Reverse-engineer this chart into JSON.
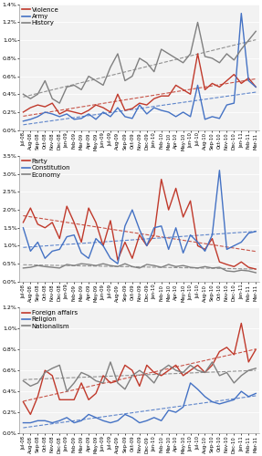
{
  "x_labels": [
    "Jul-08",
    "Aug-08",
    "Sep-08",
    "Oct-08",
    "Nov-08",
    "Dec-08",
    "Jan-09",
    "Feb-09",
    "Mar-09",
    "Apr-09",
    "May-09",
    "Jun-09",
    "Jul-09",
    "Aug-09",
    "Sep-09",
    "Oct-09",
    "Nov-09",
    "Dec-09",
    "Jan-10",
    "Feb-10",
    "Mar-10",
    "Apr-10",
    "May-10",
    "Jun-10",
    "Jul-10",
    "Aug-10",
    "Sep-10",
    "Oct-10",
    "Nov-10",
    "Dec-10",
    "Jan-11",
    "Feb-11",
    "Mar-11"
  ],
  "panel1": {
    "legend": [
      "Violence",
      "Army",
      "History"
    ],
    "colors": [
      "#c0392b",
      "#4472c4",
      "#808080"
    ],
    "ylim": [
      0.0,
      0.014
    ],
    "yticks": [
      0.0,
      0.002,
      0.004,
      0.006,
      0.008,
      0.01,
      0.012,
      0.014
    ],
    "yticklabels": [
      "0.0%",
      "0.2%",
      "0.4%",
      "0.6%",
      "0.8%",
      "1.0%",
      "1.2%",
      "1.4%"
    ],
    "violence": [
      0.002,
      0.0025,
      0.0028,
      0.0026,
      0.003,
      0.0018,
      0.0022,
      0.002,
      0.0018,
      0.0022,
      0.0028,
      0.0025,
      0.002,
      0.004,
      0.0022,
      0.0024,
      0.003,
      0.0028,
      0.0035,
      0.0038,
      0.0038,
      0.005,
      0.0045,
      0.004,
      0.0085,
      0.0045,
      0.0052,
      0.0048,
      0.0055,
      0.0062,
      0.0052,
      0.0058,
      0.0048
    ],
    "army": [
      0.001,
      0.0012,
      0.0015,
      0.002,
      0.0018,
      0.0015,
      0.0018,
      0.0012,
      0.0013,
      0.0018,
      0.0012,
      0.002,
      0.0015,
      0.0025,
      0.0015,
      0.0013,
      0.0028,
      0.0018,
      0.0025,
      0.0022,
      0.002,
      0.0015,
      0.002,
      0.0015,
      0.005,
      0.0012,
      0.0015,
      0.0013,
      0.0028,
      0.003,
      0.013,
      0.0055,
      0.0048
    ],
    "history": [
      0.004,
      0.0035,
      0.004,
      0.0055,
      0.0035,
      0.003,
      0.0048,
      0.005,
      0.0045,
      0.006,
      0.0055,
      0.005,
      0.007,
      0.0085,
      0.0055,
      0.006,
      0.008,
      0.0075,
      0.0065,
      0.009,
      0.0085,
      0.008,
      0.0075,
      0.0085,
      0.012,
      0.0082,
      0.008,
      0.0075,
      0.0085,
      0.0078,
      0.009,
      0.01,
      0.011
    ]
  },
  "panel2": {
    "legend": [
      "Party",
      "Constitution",
      "Economy"
    ],
    "colors": [
      "#c0392b",
      "#4472c4",
      "#808080"
    ],
    "ylim": [
      0.0,
      0.035
    ],
    "yticks": [
      0.0,
      0.005,
      0.01,
      0.015,
      0.02,
      0.025,
      0.03,
      0.035
    ],
    "yticklabels": [
      "0.0%",
      "0.5%",
      "1.0%",
      "1.5%",
      "2.0%",
      "2.5%",
      "3.0%",
      "3.5%"
    ],
    "party": [
      0.0165,
      0.0205,
      0.016,
      0.015,
      0.0165,
      0.012,
      0.021,
      0.0165,
      0.011,
      0.0205,
      0.0165,
      0.01,
      0.017,
      0.006,
      0.011,
      0.0065,
      0.013,
      0.01,
      0.013,
      0.0285,
      0.02,
      0.026,
      0.018,
      0.0225,
      0.01,
      0.009,
      0.012,
      0.0055,
      0.0048,
      0.0042,
      0.0055,
      0.004,
      0.0035
    ],
    "constitution": [
      0.015,
      0.0085,
      0.011,
      0.0065,
      0.0085,
      0.009,
      0.0125,
      0.013,
      0.008,
      0.0065,
      0.012,
      0.01,
      0.0065,
      0.005,
      0.0155,
      0.02,
      0.0145,
      0.01,
      0.015,
      0.0155,
      0.009,
      0.015,
      0.008,
      0.013,
      0.011,
      0.0085,
      0.013,
      0.031,
      0.009,
      0.01,
      0.011,
      0.0135,
      0.014
    ],
    "economy": [
      0.0038,
      0.004,
      0.0045,
      0.0042,
      0.004,
      0.0038,
      0.0048,
      0.0045,
      0.005,
      0.0048,
      0.0045,
      0.005,
      0.0045,
      0.0042,
      0.005,
      0.0042,
      0.0038,
      0.0048,
      0.0045,
      0.004,
      0.0048,
      0.0042,
      0.0045,
      0.004,
      0.0038,
      0.0042,
      0.0038,
      0.004,
      0.003,
      0.0028,
      0.0032,
      0.003,
      0.0025
    ]
  },
  "panel3": {
    "legend": [
      "Foreign affairs",
      "Religion",
      "Nationalism"
    ],
    "colors": [
      "#c0392b",
      "#4472c4",
      "#808080"
    ],
    "ylim": [
      0.0,
      0.012
    ],
    "yticks": [
      0.0,
      0.002,
      0.004,
      0.006,
      0.008,
      0.01,
      0.012
    ],
    "yticklabels": [
      "0.0%",
      "0.2%",
      "0.4%",
      "0.6%",
      "0.8%",
      "1.0%",
      "1.2%"
    ],
    "foreign": [
      0.003,
      0.0018,
      0.0035,
      0.006,
      0.0055,
      0.0032,
      0.0032,
      0.0032,
      0.0048,
      0.0032,
      0.0038,
      0.0055,
      0.0048,
      0.005,
      0.0065,
      0.006,
      0.0045,
      0.0065,
      0.0058,
      0.0055,
      0.006,
      0.0065,
      0.0055,
      0.006,
      0.0065,
      0.0058,
      0.0065,
      0.0078,
      0.0082,
      0.0075,
      0.0105,
      0.0068,
      0.008
    ],
    "religion": [
      0.001,
      0.001,
      0.0012,
      0.0012,
      0.001,
      0.0012,
      0.0015,
      0.001,
      0.0012,
      0.0018,
      0.0015,
      0.0012,
      0.001,
      0.0012,
      0.0018,
      0.0015,
      0.001,
      0.0012,
      0.0015,
      0.0012,
      0.0022,
      0.002,
      0.0025,
      0.0048,
      0.0042,
      0.0035,
      0.003,
      0.0028,
      0.003,
      0.0032,
      0.004,
      0.0035,
      0.0038
    ],
    "nationalism": [
      0.005,
      0.0045,
      0.0048,
      0.0058,
      0.0062,
      0.0065,
      0.004,
      0.0048,
      0.0058,
      0.0055,
      0.005,
      0.0048,
      0.0068,
      0.0048,
      0.0042,
      0.0055,
      0.006,
      0.0055,
      0.0048,
      0.006,
      0.0065,
      0.006,
      0.0058,
      0.0065,
      0.006,
      0.0058,
      0.0068,
      0.0055,
      0.0058,
      0.0048,
      0.0055,
      0.006,
      0.0062
    ]
  },
  "bg_color": "#f2f2f2",
  "line_width": 1.0,
  "trend_lw": 0.8,
  "tick_fontsize": 4.5,
  "legend_fontsize": 5.0
}
